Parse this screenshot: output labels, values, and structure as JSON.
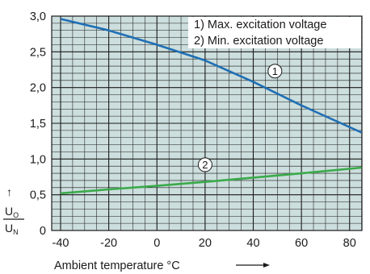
{
  "chart_data": {
    "type": "line",
    "xlabel": "Ambient temperature °C",
    "ylabel_num": "U",
    "ylabel_num_sub": "O",
    "ylabel_den": "U",
    "ylabel_den_sub": "N",
    "xlim": [
      -40,
      87
    ],
    "ylim": [
      0,
      3.0
    ],
    "x_ticks": [
      -40,
      -20,
      0,
      20,
      40,
      60,
      80
    ],
    "x_tick_labels": [
      "-40",
      "-20",
      "0",
      "20",
      "40",
      "60",
      "80"
    ],
    "y_ticks": [
      0,
      0.5,
      1.0,
      1.5,
      2.0,
      2.5,
      3.0
    ],
    "y_tick_labels": [
      "0",
      "0,5",
      "1,0",
      "1,5",
      "2,0",
      "2,5",
      "3,0"
    ],
    "grid": true,
    "legend_position": "top-right",
    "legend": [
      "1) Max. excitation voltage",
      "2) Min. excitation voltage"
    ],
    "series": [
      {
        "id": "1",
        "color": "#1f6fb5",
        "x": [
          -40,
          -20,
          0,
          20,
          40,
          60,
          85
        ],
        "y": [
          2.96,
          2.8,
          2.6,
          2.38,
          2.08,
          1.75,
          1.37
        ]
      },
      {
        "id": "2",
        "color": "#3aaa4a",
        "x": [
          -40,
          -20,
          0,
          20,
          40,
          60,
          85
        ],
        "y": [
          0.52,
          0.575,
          0.625,
          0.68,
          0.74,
          0.8,
          0.88
        ]
      }
    ],
    "callouts": [
      {
        "label": "1",
        "x": 49,
        "y": 2.23
      },
      {
        "label": "2",
        "x": 20,
        "y": 0.92
      }
    ]
  },
  "colors": {
    "plot_background": "#ccdedd",
    "grid": "#1a1a1a"
  }
}
